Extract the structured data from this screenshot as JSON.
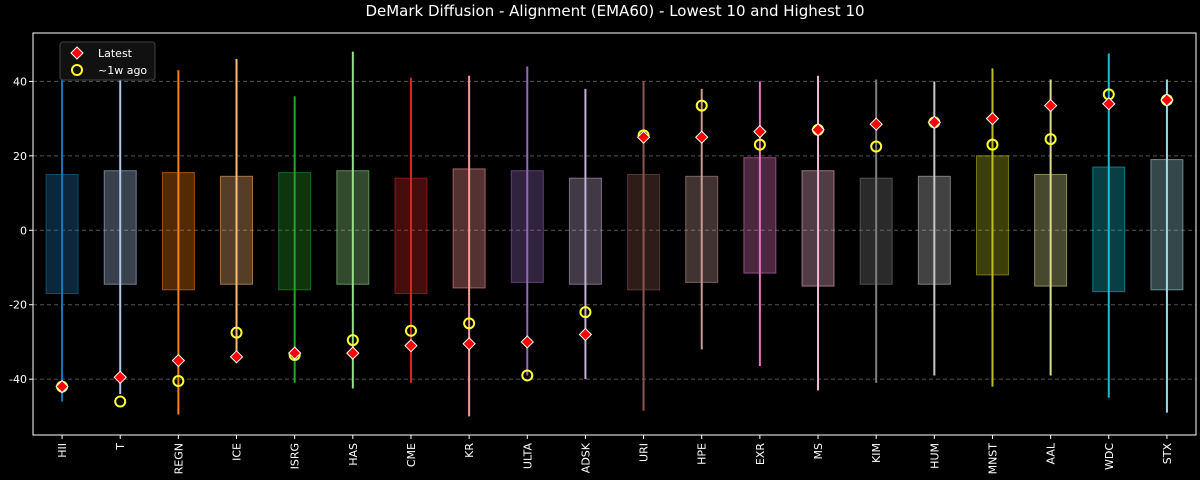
{
  "chart_data": {
    "type": "box",
    "title": "DeMark Diffusion - Alignment (EMA60) - Lowest 10 and Highest 10",
    "xlabel": "",
    "ylabel": "",
    "ylim": [
      -55,
      53
    ],
    "yticks": [
      -40,
      -20,
      0,
      20,
      40
    ],
    "grid": "y-dashed",
    "legend": {
      "placement": "top-left",
      "entries": [
        {
          "name": "Latest",
          "marker": "red-diamond"
        },
        {
          "name": "~1w ago",
          "marker": "yellow-ring"
        }
      ]
    },
    "categories": [
      {
        "label": "HII",
        "color": "#1f77b4",
        "min": -46,
        "max": 41,
        "q1": -17,
        "q3": 15,
        "latest": -42,
        "week_ago": -42
      },
      {
        "label": "T",
        "color": "#aec7e8",
        "min": -44,
        "max": 43,
        "q1": -14.5,
        "q3": 16,
        "latest": -39.5,
        "week_ago": -46
      },
      {
        "label": "REGN",
        "color": "#ff7f0e",
        "min": -49.5,
        "max": 43,
        "q1": -16,
        "q3": 15.5,
        "latest": -35,
        "week_ago": -40.5
      },
      {
        "label": "ICE",
        "color": "#ffbb78",
        "min": -34,
        "max": 46,
        "q1": -14.5,
        "q3": 14.5,
        "latest": -34,
        "week_ago": -27.5
      },
      {
        "label": "ISRG",
        "color": "#2ca02c",
        "min": -41,
        "max": 36,
        "q1": -16,
        "q3": 15.5,
        "latest": -33,
        "week_ago": -33.5
      },
      {
        "label": "HAS",
        "color": "#98df8a",
        "min": -42.5,
        "max": 48,
        "q1": -14.5,
        "q3": 16,
        "latest": -33,
        "week_ago": -29.5
      },
      {
        "label": "CME",
        "color": "#d62728",
        "min": -41,
        "max": 41,
        "q1": -17,
        "q3": 14,
        "latest": -31,
        "week_ago": -27
      },
      {
        "label": "KR",
        "color": "#ff9896",
        "min": -50,
        "max": 41.5,
        "q1": -15.5,
        "q3": 16.5,
        "latest": -30.5,
        "week_ago": -25
      },
      {
        "label": "ULTA",
        "color": "#9467bd",
        "min": -39,
        "max": 44,
        "q1": -14,
        "q3": 16,
        "latest": -30,
        "week_ago": -39
      },
      {
        "label": "ADSK",
        "color": "#c5b0d5",
        "min": -40,
        "max": 38,
        "q1": -14.5,
        "q3": 14,
        "latest": -28,
        "week_ago": -22
      },
      {
        "label": "URI",
        "color": "#8c564b",
        "min": -48.5,
        "max": 40,
        "q1": -16,
        "q3": 15,
        "latest": 25,
        "week_ago": 25.5
      },
      {
        "label": "HPE",
        "color": "#c49c94",
        "min": -32,
        "max": 38,
        "q1": -14,
        "q3": 14.5,
        "latest": 25,
        "week_ago": 33.5
      },
      {
        "label": "EXR",
        "color": "#e377c2",
        "min": -36.5,
        "max": 40,
        "q1": -11.5,
        "q3": 19.5,
        "latest": 26.5,
        "week_ago": 23
      },
      {
        "label": "MS",
        "color": "#f7b6d2",
        "min": -43,
        "max": 41.5,
        "q1": -15,
        "q3": 16,
        "latest": 27,
        "week_ago": 27
      },
      {
        "label": "KIM",
        "color": "#7f7f7f",
        "min": -41,
        "max": 40.5,
        "q1": -14.5,
        "q3": 14,
        "latest": 28.5,
        "week_ago": 22.5
      },
      {
        "label": "HUM",
        "color": "#c7c7c7",
        "min": -39,
        "max": 40,
        "q1": -14.5,
        "q3": 14.5,
        "latest": 29,
        "week_ago": 29
      },
      {
        "label": "MNST",
        "color": "#bcbd22",
        "min": -42,
        "max": 43.5,
        "q1": -12,
        "q3": 20,
        "latest": 30,
        "week_ago": 23
      },
      {
        "label": "AAL",
        "color": "#dbdb8d",
        "min": -39,
        "max": 40.5,
        "q1": -15,
        "q3": 15,
        "latest": 33.5,
        "week_ago": 24.5
      },
      {
        "label": "WDC",
        "color": "#17becf",
        "min": -45,
        "max": 47.5,
        "q1": -16.5,
        "q3": 17,
        "latest": 34,
        "week_ago": 36.5
      },
      {
        "label": "STX",
        "color": "#9edae5",
        "min": -49,
        "max": 40.5,
        "q1": -16,
        "q3": 19,
        "latest": 35,
        "week_ago": 35
      }
    ]
  }
}
